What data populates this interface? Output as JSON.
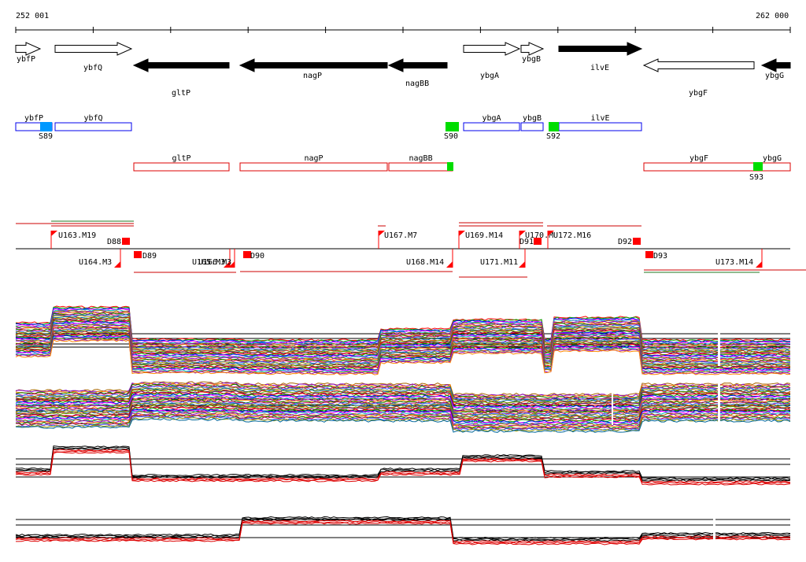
{
  "ruler": {
    "start_label": "252 001",
    "end_label": "262 000"
  },
  "colors": {
    "outline_blue": "#0000ee",
    "outline_red": "#dd0000",
    "marker_red": "#ff0000",
    "marker_green": "#00dd00",
    "marker_blue": "#0099ff",
    "black": "#000000"
  },
  "genes_forward": [
    "ybfP",
    "ybfQ",
    "ybgA",
    "ybgB",
    "ilvE"
  ],
  "genes_reverse": [
    "gltP",
    "nagP",
    "nagBB",
    "ybgF",
    "ybgG"
  ],
  "features": {
    "forward_sites": [
      "S89",
      "S90",
      "S92"
    ],
    "reverse_sites": [
      "S93"
    ],
    "transcripts_upper": [
      "U163.M19",
      "U167.M7",
      "U169.M14",
      "U170.M",
      "U172.M16"
    ],
    "transcripts_lower": [
      "U164.M3",
      "U165.M3",
      "U166.M3",
      "U168.M14",
      "U171.M11",
      "U173.M14"
    ],
    "promoters_upper": [
      "D88",
      "D91",
      "D92"
    ],
    "promoters_lower": [
      "D89",
      "D90",
      "D93"
    ]
  }
}
